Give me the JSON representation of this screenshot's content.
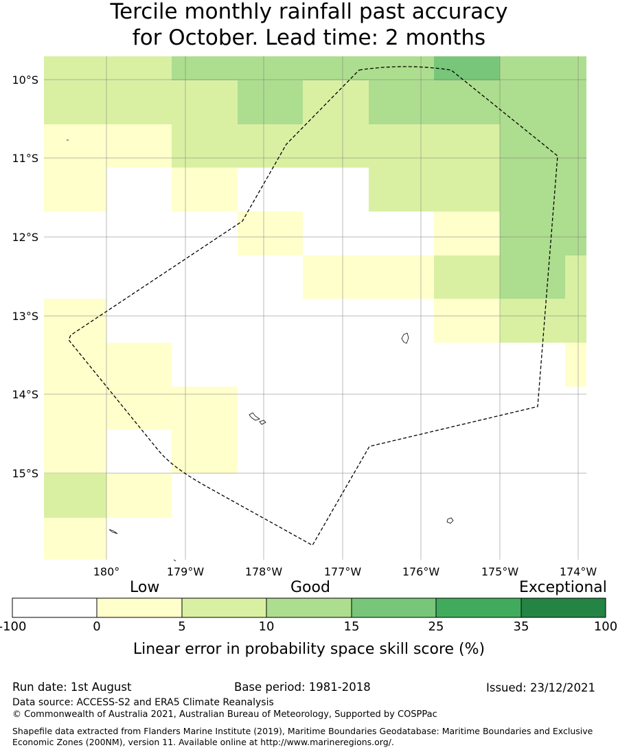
{
  "title_line1": "Tercile monthly rainfall past accuracy",
  "title_line2": "for October. Lead time: 2 months",
  "map": {
    "lat_labels": [
      "10°S",
      "11°S",
      "12°S",
      "13°S",
      "14°S",
      "15°S"
    ],
    "lon_labels": [
      "180°",
      "179°W",
      "178°W",
      "177°W",
      "176°W",
      "175°W",
      "174°W"
    ]
  },
  "legend": {
    "categories": [
      "Low",
      "Good",
      "Exceptional"
    ],
    "ticks": [
      "-100",
      "0",
      "5",
      "10",
      "15",
      "25",
      "35",
      "100"
    ],
    "colors": [
      "#ffffff",
      "#ffffcc",
      "#d9f0a3",
      "#addd8e",
      "#78c679",
      "#41ab5d",
      "#238443"
    ],
    "label": "Linear error in probability space skill score (%)"
  },
  "footer": {
    "run_date": "Run date: 1st August",
    "base_period": "Base period: 1981-2018",
    "issued": "Issued: 23/12/2021",
    "data_source": "Data source: ACCESS-S2 and ERA5 Climate Reanalysis",
    "copyright": "© Commonwealth of Australia 2021, Australian Bureau of Meteorology, Supported by COSPPac",
    "shapefile": "Shapefile data extracted from Flanders Marine Institute (2019), Maritime Boundaries Geodatabase: Maritime Boundaries and Exclusive Economic Zones (200NM), version 11. Available online at http://www.marineregions.org/."
  }
}
